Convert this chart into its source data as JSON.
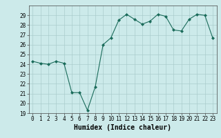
{
  "x": [
    0,
    1,
    2,
    3,
    4,
    5,
    6,
    7,
    8,
    9,
    10,
    11,
    12,
    13,
    14,
    15,
    16,
    17,
    18,
    19,
    20,
    21,
    22,
    23
  ],
  "y": [
    24.3,
    24.1,
    24.0,
    24.3,
    24.1,
    21.1,
    21.1,
    19.3,
    21.7,
    26.0,
    26.7,
    28.5,
    29.1,
    28.6,
    28.1,
    28.4,
    29.1,
    28.9,
    27.5,
    27.4,
    28.6,
    29.1,
    29.0,
    26.7
  ],
  "title": "",
  "xlabel": "Humidex (Indice chaleur)",
  "ylabel": "",
  "ylim": [
    19,
    30
  ],
  "xlim": [
    -0.5,
    23.5
  ],
  "yticks": [
    19,
    20,
    21,
    22,
    23,
    24,
    25,
    26,
    27,
    28,
    29
  ],
  "xticks": [
    0,
    1,
    2,
    3,
    4,
    5,
    6,
    7,
    8,
    9,
    10,
    11,
    12,
    13,
    14,
    15,
    16,
    17,
    18,
    19,
    20,
    21,
    22,
    23
  ],
  "line_color": "#1a6b5a",
  "marker": "D",
  "marker_size": 2.0,
  "bg_color": "#cceaea",
  "grid_color": "#aacccc",
  "tick_fontsize": 5.5,
  "xlabel_fontsize": 7.0
}
